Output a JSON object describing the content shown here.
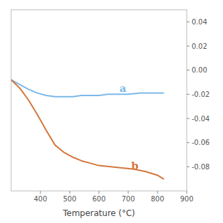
{
  "chart_data": {
    "type": "line",
    "title": "",
    "xlabel": "Temperature (°C)",
    "xlim": [
      300,
      900
    ],
    "xticks": [
      400,
      500,
      600,
      700,
      800,
      900
    ],
    "ylim": [
      -0.1,
      0.05
    ],
    "yticks": [
      0.04,
      0.02,
      {
        "value": 0.0,
        "label": "0.00"
      },
      -0.02,
      -0.04,
      -0.06,
      -0.08
    ],
    "grid": false,
    "series": [
      {
        "color": "#7ab8e8",
        "x": [
          300,
          330,
          360,
          390,
          420,
          450,
          480,
          510,
          540,
          570,
          600,
          630,
          660,
          700,
          740,
          780,
          820
        ],
        "values": [
          -0.008,
          -0.012,
          -0.016,
          -0.019,
          -0.021,
          -0.022,
          -0.022,
          -0.022,
          -0.021,
          -0.021,
          -0.021,
          -0.02,
          -0.02,
          -0.02,
          -0.019,
          -0.019,
          -0.019
        ]
      },
      {
        "color": "#d4763b",
        "x": [
          300,
          330,
          360,
          390,
          420,
          450,
          480,
          510,
          540,
          570,
          600,
          640,
          680,
          720,
          760,
          800,
          820
        ],
        "values": [
          -0.008,
          -0.015,
          -0.025,
          -0.037,
          -0.05,
          -0.062,
          -0.068,
          -0.072,
          -0.075,
          -0.077,
          -0.079,
          -0.08,
          -0.081,
          -0.082,
          -0.084,
          -0.087,
          -0.09
        ]
      }
    ],
    "annotations": [
      {
        "text": "a",
        "x": 670,
        "y": -0.018,
        "color": "#7ab8e8"
      },
      {
        "text": "b",
        "x": 710,
        "y": -0.082,
        "color": "#d4763b"
      }
    ]
  }
}
